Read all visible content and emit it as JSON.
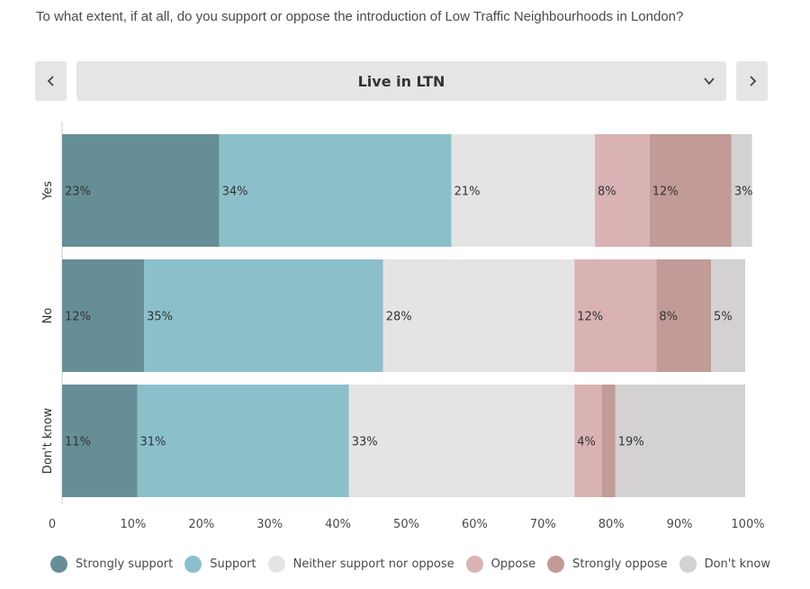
{
  "question": "To what extent, if at all, do you support or oppose the introduction of Low Traffic Neighbourhoods in London?",
  "selector": {
    "label": "Live in LTN",
    "chevron_icon": "chevron-down-icon"
  },
  "nav": {
    "prev_icon": "chevron-left-icon",
    "next_icon": "chevron-right-icon"
  },
  "chart_data": {
    "type": "bar",
    "orientation": "horizontal",
    "stacked": true,
    "title": "",
    "xlabel": "",
    "ylabel": "",
    "xlim": [
      0,
      100
    ],
    "x_ticks": [
      "0",
      "10%",
      "20%",
      "30%",
      "40%",
      "50%",
      "60%",
      "70%",
      "80%",
      "90%",
      "100%"
    ],
    "categories": [
      "Yes",
      "No",
      "Don't know"
    ],
    "legend_position": "bottom",
    "series": [
      {
        "name": "Strongly support",
        "color": "#668e96",
        "values": [
          23,
          12,
          11
        ],
        "labels": [
          "23%",
          "12%",
          "11%"
        ]
      },
      {
        "name": "Support",
        "color": "#8bc0cb",
        "values": [
          34,
          35,
          31
        ],
        "labels": [
          "34%",
          "35%",
          "31%"
        ]
      },
      {
        "name": "Neither support nor oppose",
        "color": "#e4e4e4",
        "values": [
          21,
          28,
          33
        ],
        "labels": [
          "21%",
          "28%",
          "33%"
        ]
      },
      {
        "name": "Oppose",
        "color": "#d9b2b4",
        "values": [
          8,
          12,
          4
        ],
        "labels": [
          "8%",
          "12%",
          "4%"
        ]
      },
      {
        "name": "Strongly oppose",
        "color": "#c29a97",
        "values": [
          12,
          8,
          2
        ],
        "labels": [
          "12%",
          "8%",
          ""
        ]
      },
      {
        "name": "Don't know",
        "color": "#d3d1d2",
        "values": [
          3,
          5,
          19
        ],
        "labels": [
          "3%",
          "5%",
          "19%"
        ]
      }
    ]
  }
}
